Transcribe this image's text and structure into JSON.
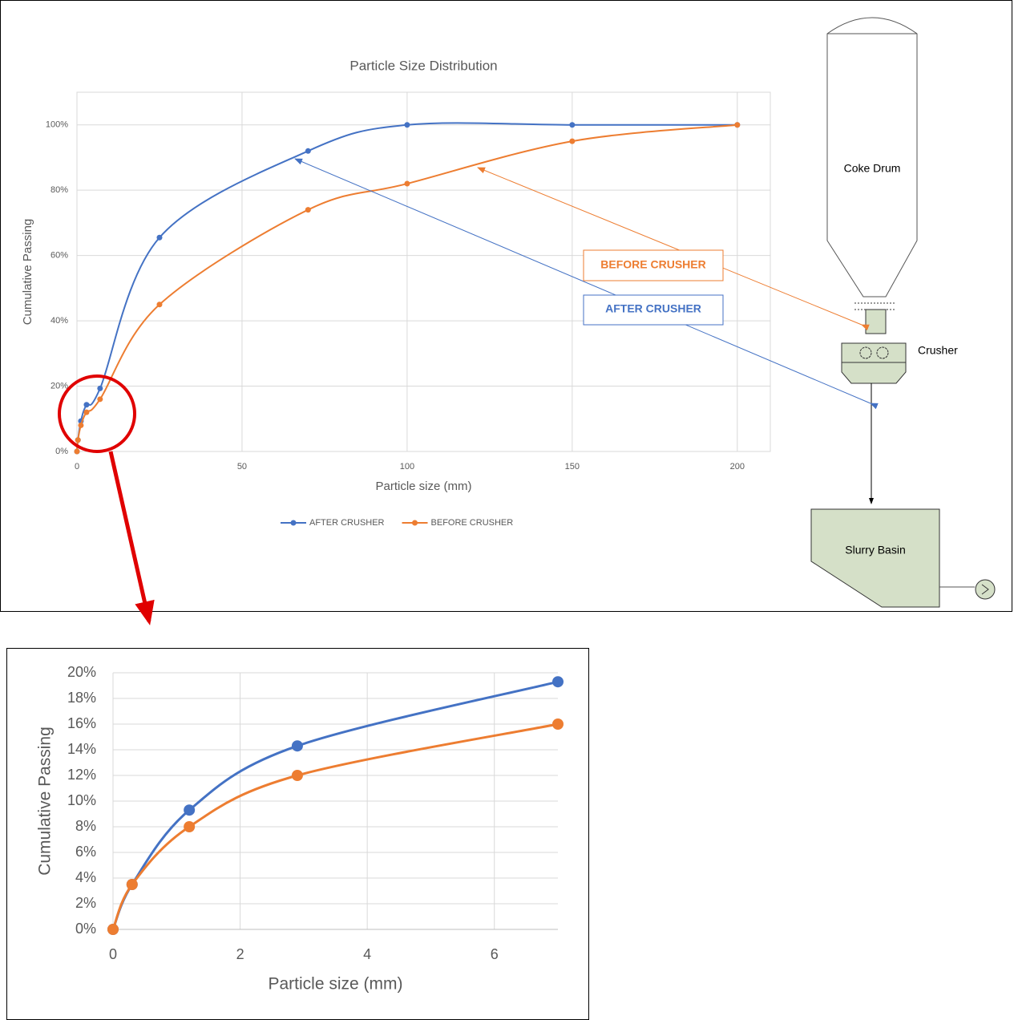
{
  "chart_data": [
    {
      "type": "line",
      "title": "Particle Size Distribution",
      "x_label": "Particle size (mm)",
      "y_label": "Cumulative Passing",
      "x": [
        0,
        0.3,
        1.2,
        2.9,
        7,
        25,
        70,
        100,
        150,
        200
      ],
      "series": [
        {
          "name": "AFTER CRUSHER",
          "color": "#4472c4",
          "values": [
            0,
            3.5,
            9.3,
            14.3,
            19.3,
            65.5,
            92,
            100,
            100,
            100
          ]
        },
        {
          "name": "BEFORE CRUSHER",
          "color": "#ed7d31",
          "values": [
            0,
            3.5,
            8,
            12,
            16,
            45,
            74,
            82,
            95,
            100
          ]
        }
      ],
      "xlim": [
        0,
        210
      ],
      "xticks": [
        0,
        50,
        100,
        150,
        200
      ],
      "ylim": [
        0,
        110
      ],
      "yticks": [
        {
          "value": 0,
          "label": "0%"
        },
        {
          "value": 20,
          "label": "20%"
        },
        {
          "value": 40,
          "label": "40%"
        },
        {
          "value": 60,
          "label": "60%"
        },
        {
          "value": 80,
          "label": "80%"
        },
        {
          "value": 100,
          "label": "100%"
        }
      ],
      "grid": true,
      "legend": "bottom"
    },
    {
      "type": "line",
      "x_label": "Particle size (mm)",
      "y_label": "Cumulative Passing",
      "x": [
        0,
        0.3,
        1.2,
        2.9,
        7
      ],
      "series": [
        {
          "color": "#4472c4",
          "values": [
            0,
            3.5,
            9.3,
            14.3,
            19.3
          ]
        },
        {
          "color": "#ed7d31",
          "values": [
            0,
            3.5,
            8,
            12,
            16
          ]
        }
      ],
      "xlim": [
        0,
        7
      ],
      "xticks": [
        0,
        2,
        4,
        6
      ],
      "ylim": [
        0,
        20
      ],
      "yticks": [
        {
          "value": 0,
          "label": "0%"
        },
        {
          "value": 2,
          "label": "2%"
        },
        {
          "value": 4,
          "label": "4%"
        },
        {
          "value": 6,
          "label": "6%"
        },
        {
          "value": 8,
          "label": "8%"
        },
        {
          "value": 10,
          "label": "10%"
        },
        {
          "value": 12,
          "label": "12%"
        },
        {
          "value": 14,
          "label": "14%"
        },
        {
          "value": 16,
          "label": "16%"
        },
        {
          "value": 18,
          "label": "18%"
        },
        {
          "value": 20,
          "label": "20%"
        }
      ],
      "grid": true
    }
  ],
  "diagram": {
    "labels": [
      "Coke Drum",
      "Crusher",
      "Slurry Basin"
    ],
    "callouts": [
      "BEFORE CRUSHER",
      "AFTER CRUSHER"
    ]
  }
}
